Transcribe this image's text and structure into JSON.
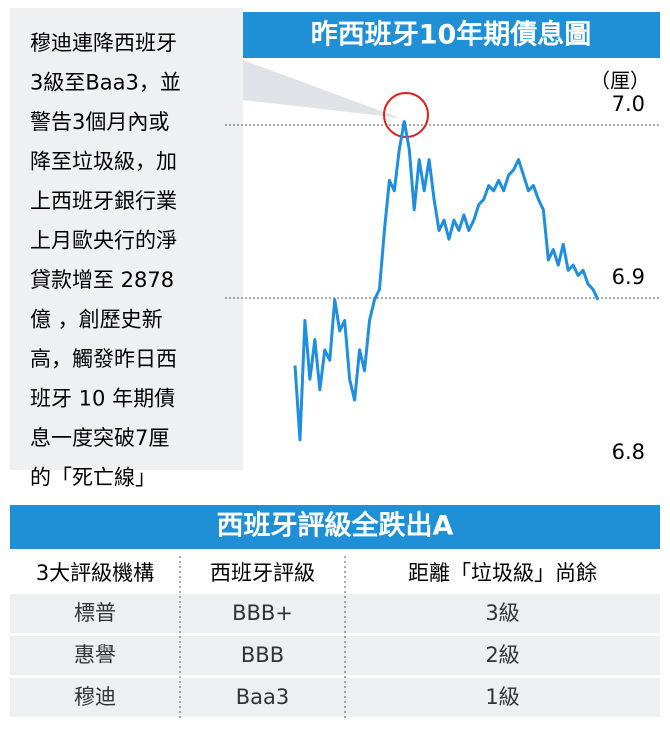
{
  "chart_data": {
    "type": "line",
    "title": "昨西班牙10年期債息圖",
    "unit": "（厘）",
    "annotation_lines": [
      "穆迪連降西班牙",
      "3級至Baa3，並",
      "警告3個月內或",
      "降至垃圾級，加",
      "上西班牙銀行業",
      "上月歐央行的淨",
      "貸款增至 2878",
      "億 ，創歷史新",
      "高，觸發昨日西",
      "班牙 10 年期債",
      "息一度突破7厘",
      "的「死亡線」"
    ],
    "categories": [
      null,
      null,
      null,
      null,
      null,
      null,
      null,
      null,
      null,
      null,
      null,
      null,
      null,
      null,
      null,
      null,
      null,
      null,
      null,
      null,
      null,
      null,
      null,
      null,
      null,
      null,
      null,
      null,
      null,
      null,
      null,
      null,
      null,
      null,
      null,
      null,
      null,
      null,
      null,
      null,
      null,
      null,
      null,
      null,
      null,
      null,
      null,
      null,
      null,
      null,
      null,
      null,
      null,
      null,
      null,
      null,
      null,
      null,
      null,
      null,
      null,
      null
    ],
    "values": [
      6.861,
      6.818,
      6.887,
      6.853,
      6.876,
      6.847,
      6.87,
      6.864,
      6.899,
      6.881,
      6.887,
      6.853,
      6.841,
      6.87,
      6.858,
      6.887,
      6.899,
      6.905,
      6.939,
      6.968,
      6.962,
      6.986,
      7.002,
      6.986,
      6.951,
      6.98,
      6.962,
      6.98,
      6.957,
      6.939,
      6.945,
      6.934,
      6.945,
      6.939,
      6.948,
      6.939,
      6.945,
      6.954,
      6.957,
      6.965,
      6.962,
      6.968,
      6.962,
      6.971,
      6.974,
      6.98,
      6.971,
      6.962,
      6.965,
      6.957,
      6.951,
      6.922,
      6.928,
      6.919,
      6.931,
      6.916,
      6.919,
      6.913,
      6.916,
      6.908,
      6.905,
      6.899
    ],
    "color": "#1e8fe0",
    "ylim": [
      6.8,
      7.0
    ],
    "yticks": [
      {
        "value": 6.8,
        "label": "6.8"
      },
      {
        "value": 6.9,
        "label": "6.9"
      },
      {
        "value": 7.0,
        "label": "7.0"
      }
    ]
  },
  "table": {
    "title": "西班牙評級全跌出A",
    "header": [
      "3大評級機構",
      "西班牙評級",
      "距離「垃圾級」尚餘"
    ],
    "rows": [
      [
        "標普",
        "BBB+",
        "3級"
      ],
      [
        "惠譽",
        "BBB",
        "2級"
      ],
      [
        "穆迪",
        "Baa3",
        "1級"
      ]
    ]
  }
}
